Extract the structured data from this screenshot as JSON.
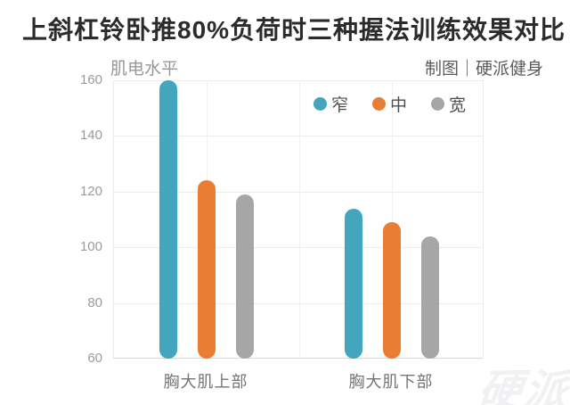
{
  "title": "上斜杠铃卧推80%负荷时三种握法训练效果对比",
  "credit": "制图｜硬派健身",
  "watermark": "硬派",
  "chart_data": {
    "type": "bar",
    "title": "上斜杠铃卧推80%负荷时三种握法训练效果对比",
    "ylabel": "肌电水平",
    "xlabel": "",
    "categories": [
      "胸大肌上部",
      "胸大肌下部"
    ],
    "series": [
      {
        "name": "窄",
        "color": "#44a5bf",
        "values": [
          160,
          114
        ]
      },
      {
        "name": "中",
        "color": "#e87d33",
        "values": [
          124,
          109
        ]
      },
      {
        "name": "宽",
        "color": "#a6a6a6",
        "values": [
          119,
          104
        ]
      }
    ],
    "ylim": [
      60,
      160
    ],
    "yticks": [
      60,
      80,
      100,
      120,
      140,
      160
    ],
    "grid": true,
    "legend_position": "top-right-inside",
    "credit": "制图｜硬派健身"
  }
}
